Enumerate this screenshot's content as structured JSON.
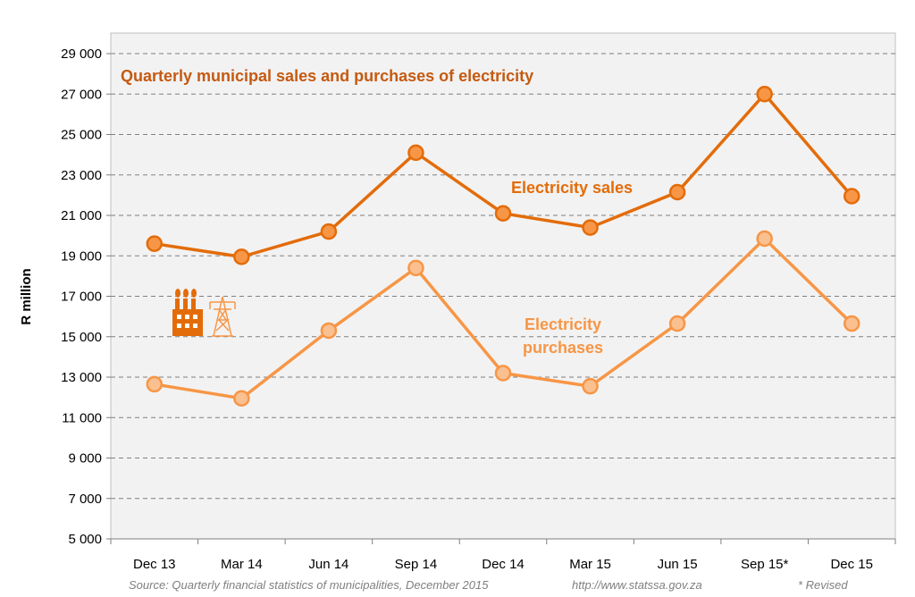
{
  "chart_data": {
    "type": "line",
    "title": "Quarterly municipal sales and purchases of electricity",
    "ylabel": "R million",
    "xlabel": "",
    "ylim": [
      5000,
      29000
    ],
    "yticks": [
      5000,
      7000,
      9000,
      11000,
      13000,
      15000,
      17000,
      19000,
      21000,
      23000,
      25000,
      27000,
      29000
    ],
    "ytick_labels": [
      "5 000",
      "7 000",
      "9 000",
      "11 000",
      "13 000",
      "15 000",
      "17 000",
      "19 000",
      "21 000",
      "23 000",
      "25 000",
      "27 000",
      "29 000"
    ],
    "grid": true,
    "categories": [
      "Dec 13",
      "Mar 14",
      "Jun 14",
      "Sep 14",
      "Dec 14",
      "Mar 15",
      "Jun 15",
      "Sep 15*",
      "Dec 15"
    ],
    "series": [
      {
        "name": "Electricity sales",
        "label_lines": [
          "Electricity sales"
        ],
        "values": [
          19600,
          18950,
          20200,
          24100,
          21100,
          20400,
          22150,
          27000,
          21950
        ],
        "color": "#E36C0A",
        "fill": "#F79646"
      },
      {
        "name": "Electricity purchases",
        "label_lines": [
          "Electricity",
          "purchases"
        ],
        "values": [
          12650,
          11950,
          15300,
          18400,
          13200,
          12550,
          15650,
          19850,
          15650
        ],
        "color": "#F79646",
        "fill": "#FAC090"
      }
    ],
    "title_color": "#C55A11"
  },
  "footer": {
    "source": "Source: Quarterly financial statistics of municipalities, December 2015",
    "url": "http://www.statssa.gov.za",
    "note": "* Revised"
  }
}
